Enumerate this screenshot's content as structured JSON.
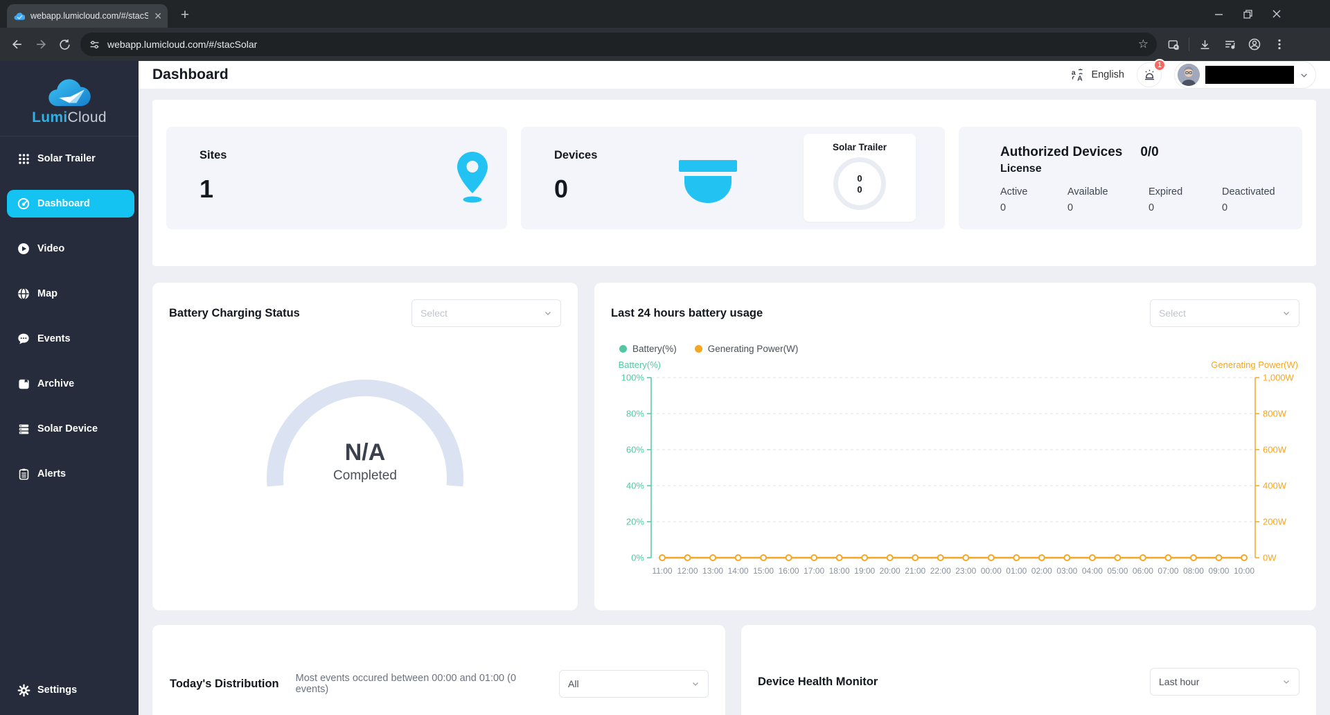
{
  "browser": {
    "tab_title": "webapp.lumicloud.com/#/stacS",
    "url": "webapp.lumicloud.com/#/stacSolar"
  },
  "sidebar": {
    "logo_primary": "Lumi",
    "logo_secondary": "Cloud",
    "items": [
      {
        "label": "Solar Trailer",
        "icon": "grid-apps-icon",
        "active": false
      },
      {
        "label": "Dashboard",
        "icon": "gauge-icon",
        "active": true
      },
      {
        "label": "Video",
        "icon": "play-circle-icon",
        "active": false
      },
      {
        "label": "Map",
        "icon": "globe-icon",
        "active": false
      },
      {
        "label": "Events",
        "icon": "chat-bubble-icon",
        "active": false
      },
      {
        "label": "Archive",
        "icon": "archive-icon",
        "active": false
      },
      {
        "label": "Solar Device",
        "icon": "server-icon",
        "active": false
      },
      {
        "label": "Alerts",
        "icon": "clipboard-icon",
        "active": false
      }
    ],
    "settings_label": "Settings",
    "active_color": "#14c3f2"
  },
  "header": {
    "title": "Dashboard",
    "language": "English",
    "notification_count": "1"
  },
  "stats": {
    "sites": {
      "label": "Sites",
      "value": "1"
    },
    "devices": {
      "label": "Devices",
      "value": "0"
    },
    "solar_trailer": {
      "title": "Solar Trailer",
      "value_top": "0",
      "value_bottom": "0"
    },
    "license": {
      "title_line1": "Authorized Devices",
      "ratio": "0/0",
      "title_line2": "License",
      "columns": [
        {
          "label": "Active",
          "value": "0"
        },
        {
          "label": "Available",
          "value": "0"
        },
        {
          "label": "Expired",
          "value": "0"
        },
        {
          "label": "Deactivated",
          "value": "0"
        }
      ]
    }
  },
  "battery_status": {
    "title": "Battery Charging Status",
    "select_placeholder": "Select",
    "gauge_value": "N/A",
    "gauge_label": "Completed"
  },
  "battery_usage": {
    "title": "Last 24 hours battery usage",
    "select_placeholder": "Select"
  },
  "chart_data": {
    "type": "line",
    "title": "Last 24 hours battery usage",
    "x": [
      "11:00",
      "12:00",
      "13:00",
      "14:00",
      "15:00",
      "16:00",
      "17:00",
      "18:00",
      "19:00",
      "20:00",
      "21:00",
      "22:00",
      "23:00",
      "00:00",
      "01:00",
      "02:00",
      "03:00",
      "04:00",
      "05:00",
      "06:00",
      "07:00",
      "08:00",
      "09:00",
      "10:00"
    ],
    "series": [
      {
        "name": "Battery(%)",
        "axis": "left",
        "color": "#52c8a2",
        "values": []
      },
      {
        "name": "Generating Power(W)",
        "axis": "right",
        "color": "#f5a623",
        "values": [
          0,
          0,
          0,
          0,
          0,
          0,
          0,
          0,
          0,
          0,
          0,
          0,
          0,
          0,
          0,
          0,
          0,
          0,
          0,
          0,
          0,
          0,
          0,
          0
        ]
      }
    ],
    "y_left": {
      "label": "Battery(%)",
      "min": 0,
      "max": 100,
      "ticks": [
        "0%",
        "20%",
        "40%",
        "60%",
        "80%",
        "100%"
      ]
    },
    "y_right": {
      "label": "Generating Power(W)",
      "min": 0,
      "max": 1000,
      "ticks": [
        "0W",
        "200W",
        "400W",
        "600W",
        "800W",
        "1,000W"
      ]
    },
    "grid": "dashed-horizontal",
    "legend_position": "top-left",
    "x_label_color": "#8a919c",
    "grid_color": "#dde5f0"
  },
  "distribution": {
    "title": "Today's Distribution",
    "subtitle": "Most events occured between 00:00 and 01:00 (0 events)",
    "select_value": "All"
  },
  "health": {
    "title": "Device Health Monitor",
    "select_value": "Last hour"
  },
  "colors": {
    "accent_cyan": "#22c3f3",
    "gauge_track": "#dbe2f2",
    "badge_red": "#f8685e"
  }
}
